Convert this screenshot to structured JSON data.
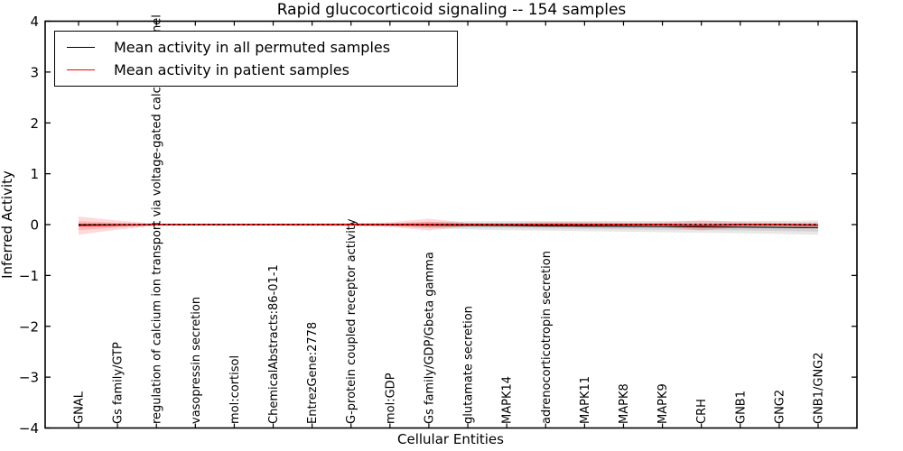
{
  "title": "Rapid glucocorticoid signaling -- 154 samples",
  "legend": {
    "items": [
      {
        "label": "Mean activity in all permuted samples",
        "color": "#000000"
      },
      {
        "label": "Mean activity in patient samples",
        "color": "#ff0000"
      }
    ]
  },
  "chart_data": {
    "type": "line",
    "title": "Rapid glucocorticoid signaling -- 154 samples",
    "xlabel": "Cellular Entities",
    "ylabel": "Inferred Activity",
    "ylim": [
      -4,
      4
    ],
    "yticks": [
      -4,
      -3,
      -2,
      -1,
      0,
      1,
      2,
      3,
      4
    ],
    "grid": false,
    "legend_position": "upper left",
    "categories": [
      "GNAL",
      "Gs family/GTP",
      "regulation of calcium ion transport via voltage-gated calcium channel",
      "vasopressin secretion",
      "mol:cortisol",
      "ChemicalAbstracts:86-01-1",
      "EntrezGene:2778",
      "G-protein coupled receptor activity",
      "mol:GDP",
      "Gs family/GDP/Gbeta gamma",
      "glutamate secretion",
      "MAPK14",
      "adrenocorticotropin secretion",
      "MAPK11",
      "MAPK8",
      "MAPK9",
      "CRH",
      "GNB1",
      "GNG2",
      "GNB1/GNG2"
    ],
    "series": [
      {
        "name": "Mean activity in all permuted samples",
        "color": "#000000",
        "line_style": "solid",
        "band_color": "rgba(0,0,0,0.09)",
        "values": [
          0,
          0,
          0,
          0,
          0,
          0,
          0,
          0,
          -0.005,
          -0.01,
          -0.015,
          -0.02,
          -0.025,
          -0.03,
          -0.035,
          -0.04,
          -0.045,
          -0.05,
          -0.055,
          -0.06
        ],
        "band_halfwidth": [
          0.02,
          0.02,
          0.02,
          0.02,
          0.02,
          0.02,
          0.02,
          0.025,
          0.03,
          0.06,
          0.08,
          0.09,
          0.095,
          0.1,
          0.105,
          0.11,
          0.115,
          0.12,
          0.13,
          0.14
        ]
      },
      {
        "name": "Mean activity in patient samples",
        "color": "#ff0000",
        "line_style": "solid",
        "band_color": "rgba(255,0,0,0.15)",
        "values": [
          -0.02,
          -0.01,
          0,
          0,
          0,
          0,
          0,
          0,
          0,
          0,
          0,
          0,
          0,
          0,
          0,
          0,
          -0.015,
          0,
          0,
          -0.01
        ],
        "band_halfwidth": [
          0.18,
          0.09,
          0.02,
          0.02,
          0.02,
          0.02,
          0.025,
          0.03,
          0.045,
          0.115,
          0.035,
          0.03,
          0.055,
          0.05,
          0.04,
          0.045,
          0.1,
          0.05,
          0.04,
          0.055
        ]
      }
    ],
    "reference_line": {
      "y": 0,
      "style": "dotted",
      "color": "#000000"
    }
  }
}
